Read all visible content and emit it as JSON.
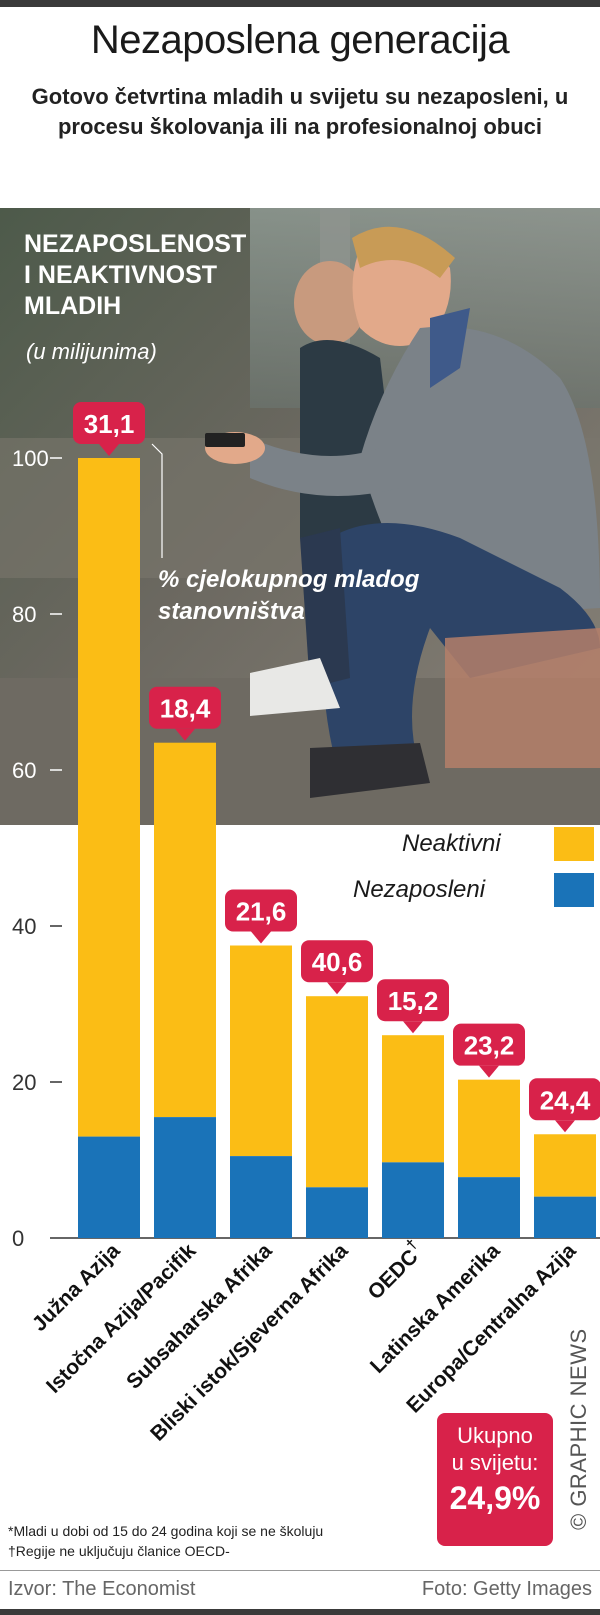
{
  "header": {
    "title": "Nezaposlena generacija",
    "subtitle": "Gotovo četvrtina mladih u svijetu su nezaposleni, u procesu školovanja ili na profesionalnoj obuci"
  },
  "chart_data": {
    "type": "bar",
    "stacked": true,
    "title_lines": [
      "NEZAPOSLENOST",
      "I NEAKTIVNOST",
      "MLADIH"
    ],
    "unit_label": "(u milijunima)",
    "annotation": [
      "% cjelokupnog mladog",
      "stanovništva"
    ],
    "categories": [
      "Južna Azija",
      "Istočna Azija/Pacifik",
      "Subsaharska Afrika",
      "Bliski istok/Sjeverna Afrika",
      "OEDC",
      "Latinska Amerika",
      "Europa/Centralna Azija"
    ],
    "category_marks": [
      "",
      "",
      "",
      "",
      "†",
      "",
      ""
    ],
    "series": [
      {
        "name": "Nezaposleni",
        "color": "#1a73b8",
        "values": [
          13,
          15.5,
          10.5,
          6.5,
          9.7,
          7.8,
          5.3
        ]
      },
      {
        "name": "Neaktivni",
        "color": "#fbbd15",
        "values": [
          87,
          48,
          27,
          24.5,
          16.3,
          12.5,
          8
        ]
      }
    ],
    "percent_labels": [
      "31,1",
      "18,4",
      "21,6",
      "40,6",
      "15,2",
      "23,2",
      "24,4"
    ],
    "ylim": [
      0,
      100
    ],
    "yticks": [
      0,
      20,
      40,
      60,
      80,
      100
    ],
    "grid": false,
    "legend_position": "right"
  },
  "world_total": {
    "label_line1": "Ukupno",
    "label_line2": "u svijetu:",
    "value": "24,9%"
  },
  "brand": "© GRAPHIC NEWS",
  "notes": {
    "note1": "*Mladi u dobi od 15 do 24 godina koji se ne školuju",
    "note2": "†Regije ne uključuju članice OECD-"
  },
  "source": {
    "left": "Izvor: The Economist",
    "right": "Foto: Getty Images"
  },
  "colors": {
    "inactive": "#fbbd15",
    "unemployed": "#1a73b8",
    "accent": "#d8224a"
  }
}
